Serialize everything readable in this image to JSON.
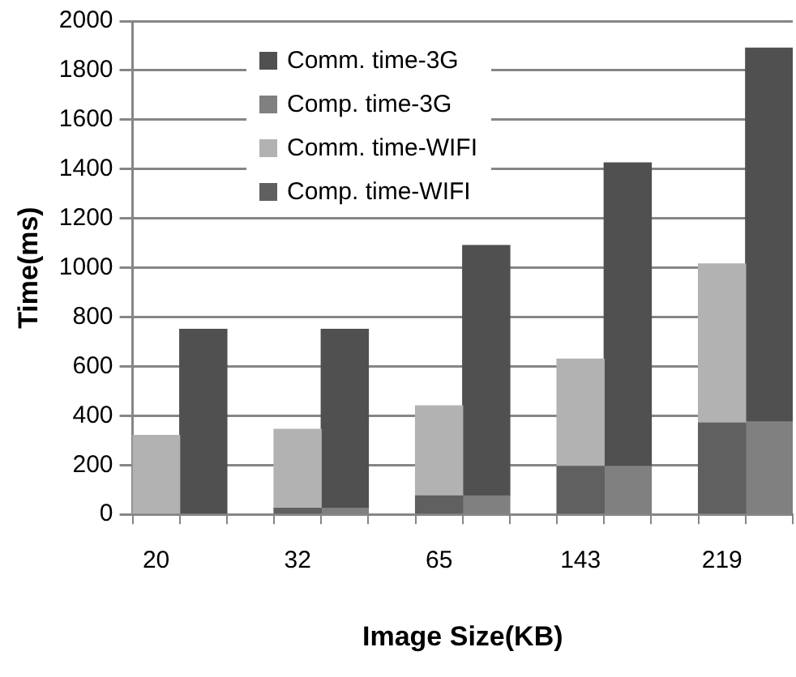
{
  "chart_data": {
    "type": "bar",
    "xlabel": "Image Size(KB)",
    "ylabel": "Time(ms)",
    "categories": [
      "20",
      null,
      null,
      "32",
      null,
      null,
      "65",
      null,
      null,
      "143",
      null,
      null,
      "219",
      null
    ],
    "stacked": true,
    "series": [
      {
        "name": "Comp. time-WIFI",
        "color": "#606060",
        "values": [
          null,
          null,
          null,
          25,
          null,
          null,
          75,
          null,
          null,
          195,
          null,
          null,
          370,
          null
        ]
      },
      {
        "name": "Comm. time-WIFI",
        "color": "#b2b2b2",
        "values": [
          320,
          null,
          null,
          320,
          null,
          null,
          365,
          null,
          null,
          435,
          null,
          null,
          645,
          null
        ]
      },
      {
        "name": "Comp. time-3G",
        "color": "#808080",
        "values": [
          null,
          null,
          null,
          null,
          25,
          null,
          null,
          75,
          null,
          null,
          195,
          null,
          null,
          375
        ]
      },
      {
        "name": "Comm. time-3G",
        "color": "#505050",
        "values": [
          null,
          750,
          null,
          null,
          725,
          null,
          null,
          1015,
          null,
          null,
          1230,
          null,
          null,
          1515
        ]
      }
    ],
    "ylim": [
      0,
      2000
    ],
    "yticks": [
      0,
      200,
      400,
      600,
      800,
      1000,
      1200,
      1400,
      1600,
      1800,
      2000
    ],
    "grid": "y",
    "legend": "top"
  }
}
